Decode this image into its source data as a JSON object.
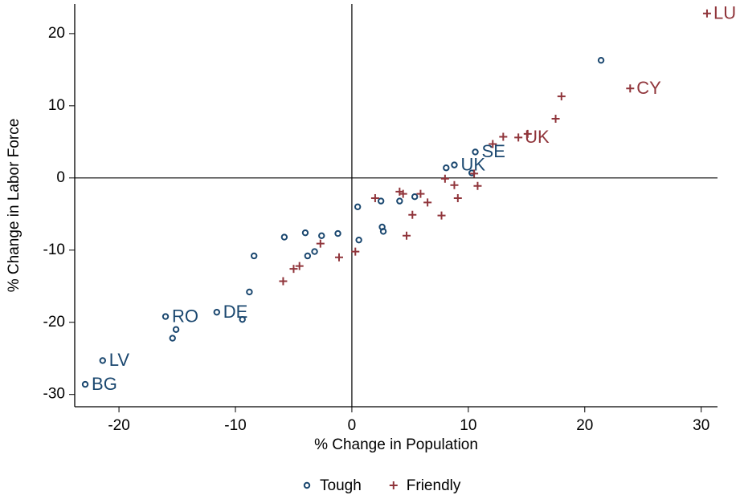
{
  "chart_data": {
    "type": "scatter",
    "xlabel": "% Change in Population",
    "ylabel": "% Change in Labor Force",
    "xlim": [
      -23.8,
      31.4
    ],
    "ylim": [
      -31.7,
      24.1
    ],
    "xticks": [
      -20,
      -10,
      0,
      10,
      20,
      30
    ],
    "yticks": [
      -30,
      -20,
      -10,
      0,
      10,
      20
    ],
    "xline": 0,
    "yline": 0,
    "legend": "bottom",
    "series": [
      {
        "name": "Tough",
        "color": "#1a476f",
        "marker": "circle",
        "x": [
          21.4,
          10.6,
          8.8,
          8.1,
          10.3,
          0.5,
          2.5,
          4.1,
          5.4,
          2.6,
          2.7,
          0.6,
          -1.2,
          -2.6,
          -4,
          -5.8,
          -3.2,
          -3.8,
          -8.4,
          -8.8,
          -11.6,
          -9.4,
          -16,
          -15.1,
          -15.4,
          -21.4,
          -22.9
        ],
        "values": [
          16.3,
          3.6,
          1.8,
          1.4,
          0.7,
          -4,
          -3.2,
          -3.2,
          -2.6,
          -6.8,
          -7.4,
          -8.6,
          -7.7,
          -8,
          -7.6,
          -8.2,
          -10.2,
          -10.8,
          -10.8,
          -15.8,
          -18.6,
          -19.6,
          -19.2,
          -21,
          -22.2,
          -25.3,
          -28.6
        ],
        "labels": [
          null,
          "SE",
          "UK",
          null,
          null,
          null,
          null,
          null,
          null,
          null,
          null,
          null,
          null,
          null,
          null,
          null,
          null,
          null,
          null,
          null,
          "DE",
          null,
          "RO",
          null,
          null,
          "LV",
          "BG"
        ]
      },
      {
        "name": "Friendly",
        "color": "#90353b",
        "marker": "plus",
        "x": [
          30.5,
          23.9,
          18,
          17.5,
          14.3,
          15.1,
          13,
          12.1,
          10.5,
          8,
          8.8,
          10.8,
          9.1,
          6.5,
          5.9,
          5.2,
          7.7,
          4.7,
          2,
          4.1,
          4.4,
          0.3,
          -1.1,
          -2.7,
          -4.5,
          -5,
          -5.9
        ],
        "values": [
          22.8,
          12.4,
          11.3,
          8.2,
          5.6,
          6.1,
          5.7,
          4.7,
          0.6,
          -0.1,
          -1,
          -1.1,
          -2.8,
          -3.4,
          -2.2,
          -5.1,
          -5.2,
          -8,
          -2.8,
          -1.9,
          -2.2,
          -10.2,
          -11,
          -9.1,
          -12.2,
          -12.6,
          -14.3
        ],
        "labels": [
          "LU",
          "CY",
          null,
          null,
          "UK",
          null,
          null,
          null,
          null,
          null,
          null,
          null,
          null,
          null,
          null,
          null,
          null,
          null,
          null,
          null,
          null,
          null,
          null,
          null,
          null,
          null,
          null
        ]
      }
    ]
  }
}
